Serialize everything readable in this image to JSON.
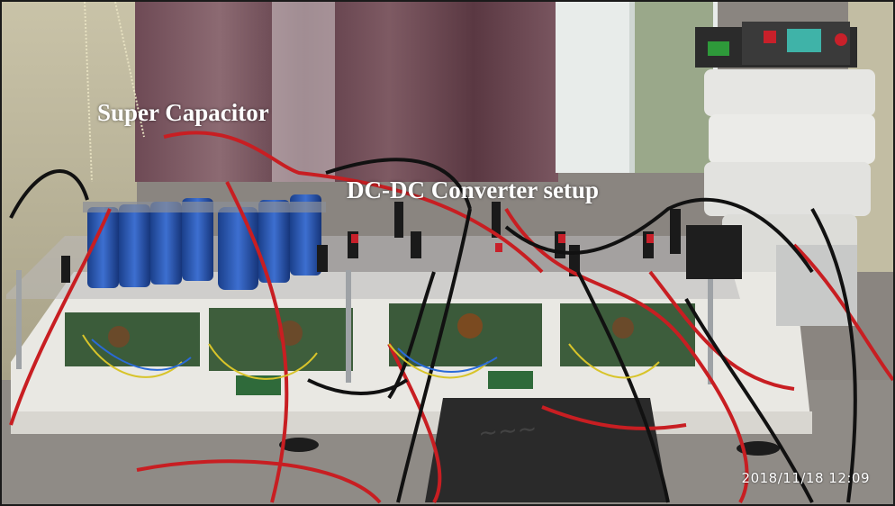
{
  "labels": {
    "super_capacitor": "Super Capacitor",
    "dcdc_setup": "DC-DC Converter setup"
  },
  "timestamp": "2018/11/18  12:09"
}
